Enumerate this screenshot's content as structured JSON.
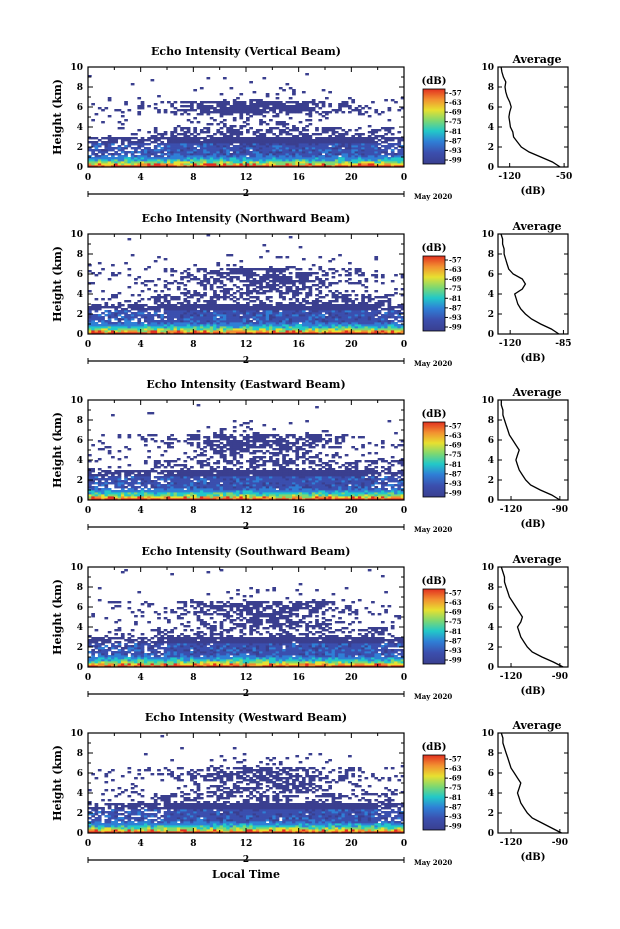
{
  "chart_data": {
    "type": "heatmap",
    "y_label": "Height (km)",
    "x_label": "Local Time",
    "date_label": "May 2020",
    "day_marker": "2",
    "x_ticks": [
      "0",
      "4",
      "8",
      "12",
      "16",
      "20",
      "0"
    ],
    "xlim": [
      0,
      24
    ],
    "y_ticks": [
      "0",
      "2",
      "4",
      "6",
      "8",
      "10"
    ],
    "ylim": [
      0,
      10
    ],
    "colorbar_unit": "(dB)",
    "colorbar_ticks": [
      "-57",
      "-63",
      "-69",
      "-75",
      "-81",
      "-87",
      "-93",
      "-99"
    ],
    "colorbar_range": [
      -99,
      -57
    ],
    "average_title": "Average",
    "average_unit": "(dB)",
    "colors": {
      "low": "#3a3f8f",
      "mid_low": "#2f7fd6",
      "mid": "#22c8c8",
      "mid_high": "#e8e030",
      "high": "#e23020"
    },
    "panels": [
      {
        "title": "Echo Intensity (Vertical Beam)",
        "avg_xticks": [
          "-120",
          "-50"
        ],
        "avg_xlim": [
          -135,
          -45
        ],
        "avg_profile": {
          "height": [
            0,
            0.5,
            1,
            1.5,
            2,
            2.5,
            3,
            3.5,
            4,
            4.5,
            5,
            5.5,
            6,
            6.5,
            7,
            7.5,
            8,
            8.5,
            9,
            9.5,
            10
          ],
          "value": [
            -55,
            -65,
            -80,
            -95,
            -105,
            -110,
            -115,
            -116,
            -119,
            -120,
            -121,
            -120,
            -118,
            -120,
            -123,
            -125,
            -126,
            -125,
            -128,
            -130,
            -131
          ]
        }
      },
      {
        "title": "Echo Intensity (Northward Beam)",
        "avg_xticks": [
          "-120",
          "-85"
        ],
        "avg_xlim": [
          -128,
          -82
        ],
        "avg_profile": {
          "height": [
            0,
            0.5,
            1,
            1.5,
            2,
            2.5,
            3,
            3.5,
            4,
            4.5,
            5,
            5.5,
            6,
            6.5,
            7,
            7.5,
            8,
            8.5,
            9,
            9.5,
            10
          ],
          "value": [
            -88,
            -93,
            -100,
            -106,
            -110,
            -113,
            -115,
            -116,
            -117,
            -112,
            -110,
            -112,
            -118,
            -121,
            -122,
            -123,
            -124,
            -124,
            -125,
            -125,
            -126
          ]
        }
      },
      {
        "title": "Echo Intensity (Eastward Beam)",
        "avg_xticks": [
          "-120",
          "-90"
        ],
        "avg_xlim": [
          -128,
          -85
        ],
        "avg_profile": {
          "height": [
            0,
            0.5,
            1,
            1.5,
            2,
            2.5,
            3,
            3.5,
            4,
            4.5,
            5,
            5.5,
            6,
            6.5,
            7,
            7.5,
            8,
            8.5,
            9,
            9.5,
            10
          ],
          "value": [
            -90,
            -95,
            -102,
            -108,
            -111,
            -113,
            -115,
            -116,
            -117,
            -116,
            -115,
            -117,
            -119,
            -121,
            -122,
            -123,
            -124,
            -125,
            -125,
            -126,
            -126
          ]
        }
      },
      {
        "title": "Echo Intensity (Southward Beam)",
        "avg_xticks": [
          "-120",
          "-90"
        ],
        "avg_xlim": [
          -128,
          -85
        ],
        "avg_profile": {
          "height": [
            0,
            0.5,
            1,
            1.5,
            2,
            2.5,
            3,
            3.5,
            4,
            4.5,
            5,
            5.5,
            6,
            6.5,
            7,
            7.5,
            8,
            8.5,
            9,
            9.5,
            10
          ],
          "value": [
            -88,
            -94,
            -101,
            -107,
            -110,
            -112,
            -114,
            -115,
            -116,
            -114,
            -113,
            -115,
            -117,
            -119,
            -121,
            -122,
            -123,
            -124,
            -124,
            -125,
            -126
          ]
        }
      },
      {
        "title": "Echo Intensity (Westward Beam)",
        "avg_xticks": [
          "-120",
          "-90"
        ],
        "avg_xlim": [
          -128,
          -85
        ],
        "avg_profile": {
          "height": [
            0,
            0.5,
            1,
            1.5,
            2,
            2.5,
            3,
            3.5,
            4,
            4.5,
            5,
            5.5,
            6,
            6.5,
            7,
            7.5,
            8,
            8.5,
            9,
            9.5,
            10
          ],
          "value": [
            -89,
            -95,
            -101,
            -107,
            -110,
            -112,
            -114,
            -115,
            -116,
            -115,
            -114,
            -116,
            -118,
            -120,
            -121,
            -122,
            -123,
            -124,
            -125,
            -125,
            -126
          ]
        }
      }
    ]
  }
}
